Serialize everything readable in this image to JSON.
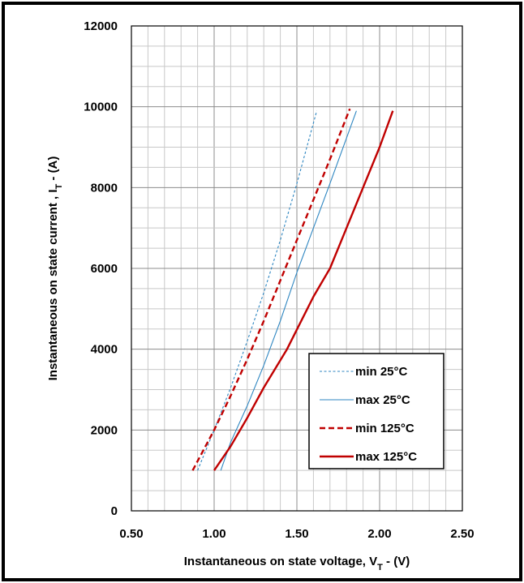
{
  "chart_data": {
    "type": "line",
    "title": "",
    "xlabel": {
      "main": "Instantaneous  on state voltage, V",
      "sub": "T",
      "tail": " - (V)"
    },
    "ylabel": {
      "main": "Instantaneous  on state current , I",
      "sub": "T",
      "tail": " - (A)"
    },
    "xlim": [
      0.5,
      2.5
    ],
    "ylim": [
      0,
      12000
    ],
    "xticks": [
      0.5,
      1.0,
      1.5,
      2.0,
      2.5
    ],
    "xtick_labels": [
      "0.50",
      "1.00",
      "1.50",
      "2.00",
      "2.50"
    ],
    "yticks": [
      0,
      2000,
      4000,
      6000,
      8000,
      10000,
      12000
    ],
    "ytick_labels": [
      "0",
      "2000",
      "4000",
      "6000",
      "8000",
      "10000",
      "12000"
    ],
    "grid": true,
    "legend_position": "lower-right",
    "series": [
      {
        "name": "min 25°C",
        "color": "#2e86c1",
        "style": "dashed-thin",
        "x": [
          0.9,
          1.0,
          1.1,
          1.2,
          1.3,
          1.4,
          1.5,
          1.62
        ],
        "y": [
          1000,
          2000,
          3050,
          4200,
          5400,
          6700,
          8100,
          9900
        ]
      },
      {
        "name": "max 25°C",
        "color": "#2e86c1",
        "style": "solid-thin",
        "x": [
          1.04,
          1.1,
          1.2,
          1.3,
          1.4,
          1.5,
          1.6,
          1.7,
          1.86
        ],
        "y": [
          1000,
          1700,
          2600,
          3600,
          4700,
          5900,
          7000,
          8100,
          9900
        ]
      },
      {
        "name": "min 125°C",
        "color": "#c00000",
        "style": "dashed-thick",
        "x": [
          0.87,
          1.0,
          1.1,
          1.2,
          1.3,
          1.4,
          1.5,
          1.6,
          1.7,
          1.82
        ],
        "y": [
          1000,
          2000,
          2850,
          3750,
          4700,
          5700,
          6700,
          7700,
          8700,
          9950
        ]
      },
      {
        "name": "max 125°C",
        "color": "#c00000",
        "style": "solid-thick",
        "x": [
          1.0,
          1.1,
          1.2,
          1.3,
          1.44,
          1.6,
          1.7,
          1.8,
          1.9,
          2.0,
          2.08
        ],
        "y": [
          1000,
          1600,
          2300,
          3050,
          4000,
          5300,
          6000,
          7000,
          8000,
          9000,
          9900
        ]
      }
    ]
  }
}
